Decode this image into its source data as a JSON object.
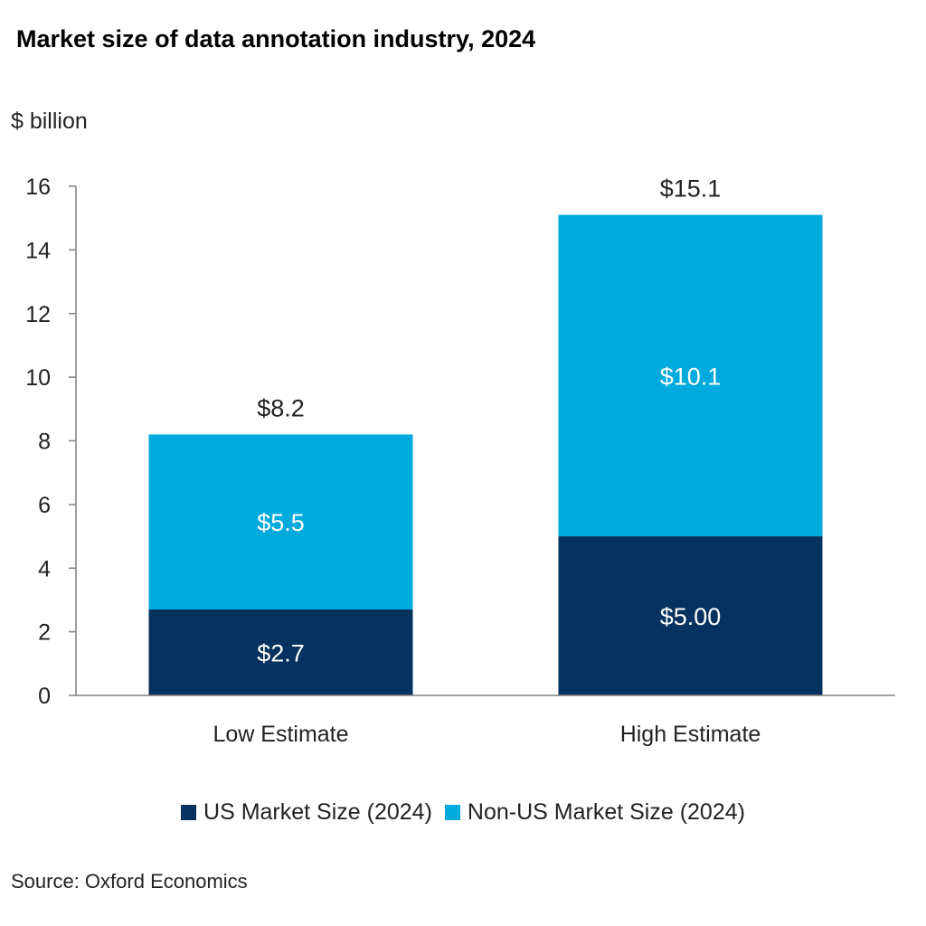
{
  "chart_data": {
    "type": "bar",
    "stacked": true,
    "title": "Market size of data annotation industry, 2024",
    "ylabel": "$ billion",
    "xlabel": "",
    "ylim": [
      0,
      16
    ],
    "yticks": [
      0,
      2,
      4,
      6,
      8,
      10,
      12,
      14,
      16
    ],
    "categories": [
      "Low Estimate",
      "High Estimate"
    ],
    "series": [
      {
        "name": "US Market Size (2024)",
        "color": "#05325e",
        "values": [
          2.7,
          5.0
        ],
        "labels": [
          "$2.7",
          "$5.00"
        ]
      },
      {
        "name": "Non-US Market Size (2024)",
        "color": "#00aadd",
        "values": [
          5.5,
          10.1
        ],
        "labels": [
          "$5.5",
          "$10.1"
        ]
      }
    ],
    "totals": [
      8.2,
      15.1
    ],
    "total_labels": [
      "$8.2",
      "$15.1"
    ],
    "legend_position": "bottom",
    "source": "Source: Oxford Economics"
  }
}
